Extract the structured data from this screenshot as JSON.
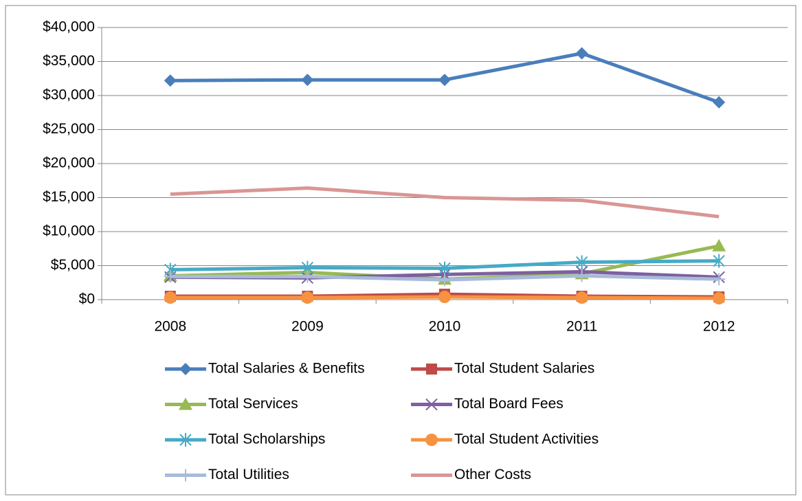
{
  "chart_data": {
    "type": "line",
    "categories": [
      "2008",
      "2009",
      "2010",
      "2011",
      "2012"
    ],
    "series": [
      {
        "name": "Total Salaries & Benefits",
        "color": "#4a7ebb",
        "marker": "diamond",
        "values": [
          32200,
          32300,
          32300,
          36200,
          29000
        ]
      },
      {
        "name": "Total Student Salaries",
        "color": "#be4b48",
        "marker": "square",
        "values": [
          500,
          500,
          800,
          500,
          400
        ]
      },
      {
        "name": "Total Services",
        "color": "#98b954",
        "marker": "triangle",
        "values": [
          3500,
          4000,
          3000,
          3800,
          7900
        ]
      },
      {
        "name": "Total Board Fees",
        "color": "#7d60a0",
        "marker": "x",
        "values": [
          3300,
          3200,
          3700,
          4100,
          3300
        ]
      },
      {
        "name": "Total Scholarships",
        "color": "#46aac5",
        "marker": "asterisk",
        "values": [
          4400,
          4700,
          4600,
          5500,
          5700
        ]
      },
      {
        "name": "Total Student Activities",
        "color": "#f69240",
        "marker": "circle",
        "values": [
          300,
          300,
          400,
          300,
          200
        ]
      },
      {
        "name": "Total Utilities",
        "color": "#a8bbd9",
        "marker": "plus",
        "values": [
          3400,
          3400,
          2900,
          3500,
          3000
        ]
      },
      {
        "name": "Other Costs",
        "color": "#d99694",
        "marker": "none",
        "values": [
          15500,
          16400,
          15000,
          14600,
          12200
        ]
      }
    ],
    "ylim": [
      0,
      40000
    ],
    "yticks": [
      {
        "value": 0,
        "label": "$0"
      },
      {
        "value": 5000,
        "label": "$5,000"
      },
      {
        "value": 10000,
        "label": "$10,000"
      },
      {
        "value": 15000,
        "label": "$15,000"
      },
      {
        "value": 20000,
        "label": "$20,000"
      },
      {
        "value": 25000,
        "label": "$25,000"
      },
      {
        "value": 30000,
        "label": "$30,000"
      },
      {
        "value": 35000,
        "label": "$35,000"
      },
      {
        "value": 40000,
        "label": "$40,000"
      }
    ],
    "grid": true,
    "legend": "bottom"
  }
}
